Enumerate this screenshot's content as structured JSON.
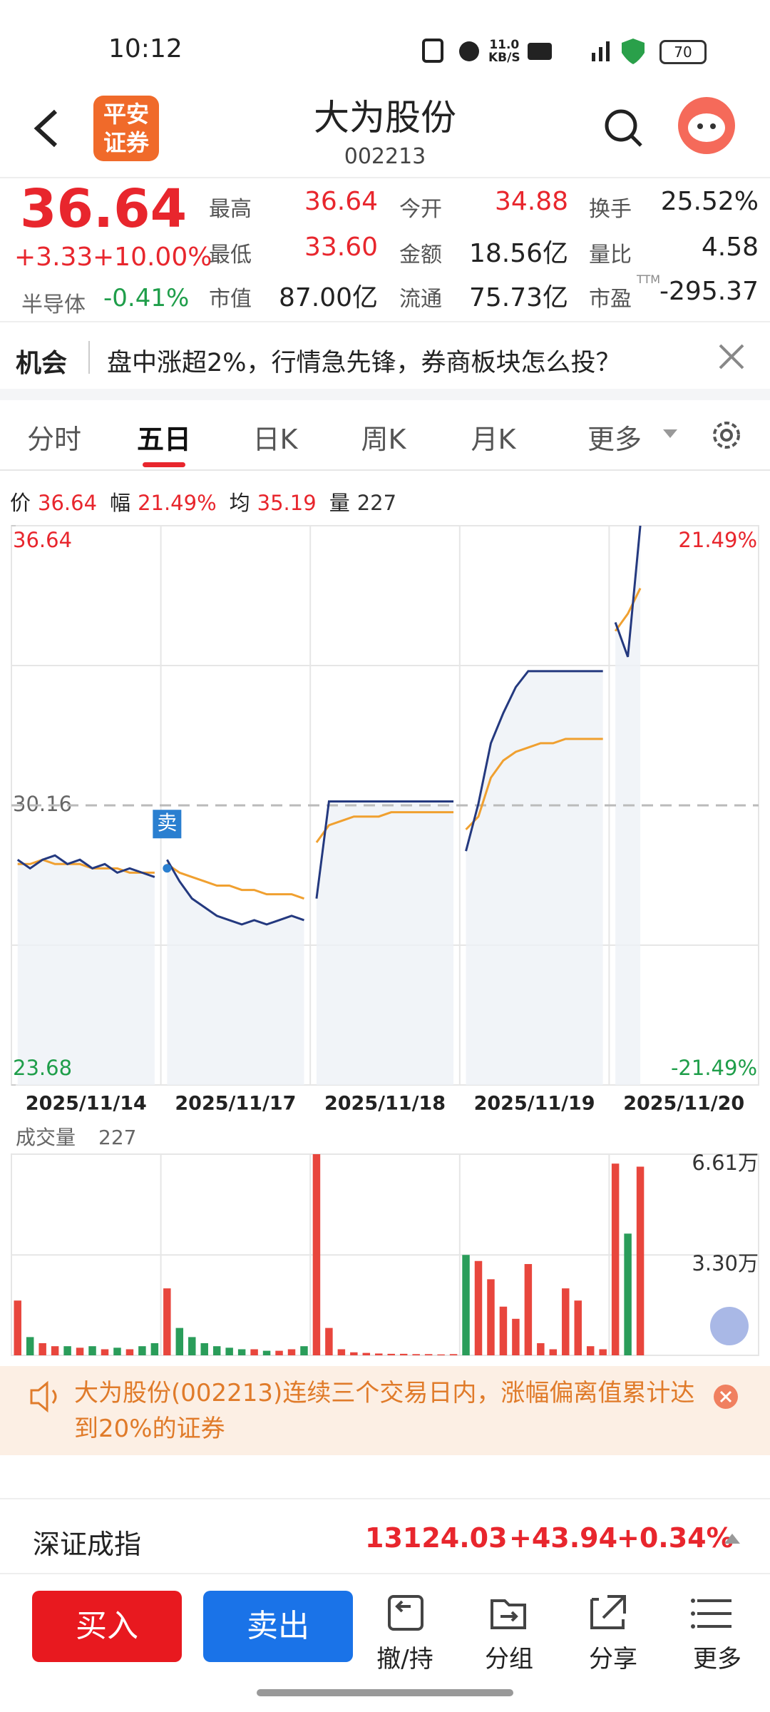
{
  "status_bar": {
    "time": "10:12",
    "net_speed": "11.0",
    "net_unit": "KB/S",
    "battery": "70"
  },
  "header": {
    "broker_logo": [
      "平安",
      "证券"
    ],
    "title": "大为股份",
    "code": "002213"
  },
  "quote": {
    "price": "36.64",
    "change": "+3.33",
    "change_pct": "+10.00%",
    "sector": "半导体",
    "sector_pct": "-0.41%",
    "stats": [
      [
        "最高",
        "36.64"
      ],
      [
        "今开",
        "34.88"
      ],
      [
        "换手",
        "25.52%"
      ],
      [
        "最低",
        "33.60"
      ],
      [
        "金额",
        "18.56亿"
      ],
      [
        "量比",
        "4.58"
      ],
      [
        "市值",
        "87.00亿"
      ],
      [
        "流通",
        "75.73亿"
      ],
      [
        "市盈",
        "-295.37"
      ]
    ],
    "pe_tag": "TTM"
  },
  "news": {
    "tag": "机会",
    "text": "盘中涨超2%，行情急先锋，券商板块怎么投？"
  },
  "tabs": [
    "分时",
    "五日",
    "日K",
    "周K",
    "月K",
    "更多"
  ],
  "chart_info": [
    [
      "价",
      "36.64"
    ],
    [
      "幅",
      "21.49%"
    ],
    [
      "均",
      "35.19"
    ],
    [
      "量",
      "227"
    ]
  ],
  "chart_data": {
    "type": "line",
    "ylim": [
      23.68,
      36.64
    ],
    "yticks": [
      23.68,
      30.16,
      36.64
    ],
    "pct_labels": [
      "21.49%",
      "-21.49%"
    ],
    "categories": [
      "2025/11/14",
      "2025/11/17",
      "2025/11/18",
      "2025/11/19",
      "2025/11/20"
    ],
    "annotation": "卖",
    "series": [
      {
        "color": "#24397f",
        "values": [
          [
            28.9,
            28.7,
            28.9,
            29.0,
            28.8,
            28.9,
            28.7,
            28.8,
            28.6,
            28.7,
            28.6,
            28.5
          ],
          [
            28.9,
            28.4,
            28.0,
            27.8,
            27.6,
            27.5,
            27.4,
            27.5,
            27.4,
            27.5,
            27.6,
            27.5
          ],
          [
            28.0,
            30.25,
            30.25,
            30.25,
            30.25,
            30.25,
            30.25,
            30.25,
            30.25,
            30.25,
            30.25,
            30.25
          ],
          [
            29.1,
            30.2,
            31.6,
            32.3,
            32.9,
            33.27,
            33.27,
            33.27,
            33.27,
            33.27,
            33.27,
            33.27
          ],
          [
            34.4,
            33.6,
            36.64
          ]
        ]
      },
      {
        "color": "#f0a030",
        "values": [
          [
            28.8,
            28.8,
            28.9,
            28.8,
            28.8,
            28.8,
            28.7,
            28.7,
            28.7,
            28.6,
            28.6,
            28.6
          ],
          [
            28.8,
            28.6,
            28.5,
            28.4,
            28.3,
            28.3,
            28.2,
            28.2,
            28.1,
            28.1,
            28.1,
            28.0
          ],
          [
            29.3,
            29.7,
            29.8,
            29.9,
            29.9,
            29.9,
            30.0,
            30.0,
            30.0,
            30.0,
            30.0,
            30.0
          ],
          [
            29.6,
            29.9,
            30.8,
            31.2,
            31.4,
            31.5,
            31.6,
            31.6,
            31.7,
            31.7,
            31.7,
            31.7
          ],
          [
            34.2,
            34.6,
            35.19
          ]
        ]
      }
    ]
  },
  "volume_chart": {
    "type": "bar",
    "label": "成交量",
    "current": "227",
    "ylim": [
      0,
      66100
    ],
    "yticks": [
      {
        "value": 66100,
        "label": "6.61万"
      },
      {
        "value": 33000,
        "label": "3.30万"
      }
    ],
    "values": [
      [
        18000,
        6000,
        4000,
        3000,
        3000,
        2500,
        3000,
        2000,
        2500,
        2000,
        3000,
        4000
      ],
      [
        22000,
        9000,
        6000,
        4000,
        3000,
        2500,
        2000,
        2000,
        1500,
        1500,
        2000,
        3000
      ],
      [
        66100,
        9000,
        2000,
        1000,
        800,
        600,
        500,
        500,
        400,
        400,
        300,
        400
      ],
      [
        33000,
        31000,
        25000,
        16000,
        12000,
        30000,
        4000,
        2000,
        22000,
        18000,
        3000,
        2000
      ],
      [
        63000,
        40000,
        62000
      ]
    ]
  },
  "alert": {
    "text": "大为股份(002213)连续三个交易日内，涨幅偏离值累计达到20%的证券"
  },
  "index_bar": {
    "name": "深证成指",
    "value": "13124.03",
    "change": "+43.94",
    "pct": "+0.34%"
  },
  "bottom_nav": {
    "buy": "买入",
    "sell": "卖出",
    "items": [
      "撤/持",
      "分组",
      "分享",
      "更多"
    ]
  }
}
